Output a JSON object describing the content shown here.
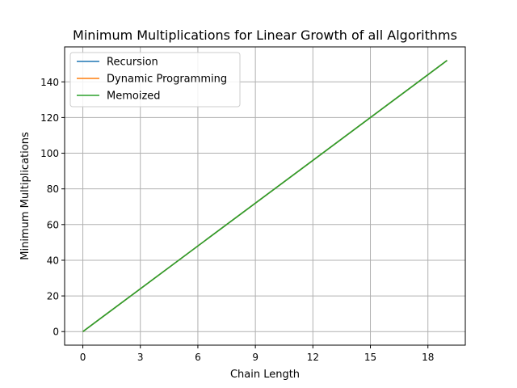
{
  "chart_data": {
    "type": "line",
    "title": "Minimum Multiplications for Linear Growth of all Algorithms",
    "xlabel": "Chain Length",
    "ylabel": "Minimum Multiplications",
    "xlim": [
      -0.95,
      19.95
    ],
    "ylim": [
      -7.6,
      159.6
    ],
    "xticks": [
      0,
      3,
      6,
      9,
      12,
      15,
      18
    ],
    "yticks": [
      0,
      20,
      40,
      60,
      80,
      100,
      120,
      140
    ],
    "grid": true,
    "legend_position": "top-left",
    "x": [
      0,
      19
    ],
    "series": [
      {
        "name": "Recursion",
        "color": "#1f77b4",
        "values": [
          0,
          152
        ]
      },
      {
        "name": "Dynamic Programming",
        "color": "#ff7f0e",
        "values": [
          0,
          152
        ]
      },
      {
        "name": "Memoized",
        "color": "#2ca02c",
        "values": [
          0,
          152
        ]
      }
    ]
  }
}
